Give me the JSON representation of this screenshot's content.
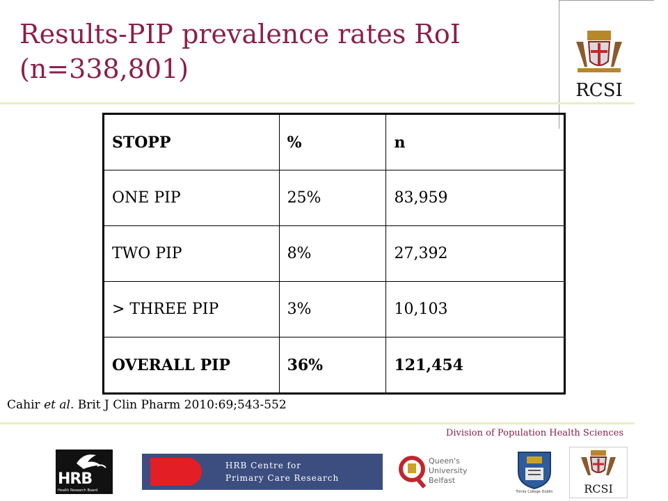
{
  "title": {
    "line1": "Results-PIP prevalence rates RoI",
    "line2": "(n=338,801)"
  },
  "table": {
    "header": [
      "STOPP",
      "%",
      "n"
    ],
    "rows": [
      [
        "ONE PIP",
        "25%",
        "83,959"
      ],
      [
        "TWO PIP",
        "8%",
        "27,392"
      ],
      [
        "> THREE PIP",
        "3%",
        "10,103"
      ]
    ],
    "total": [
      "OVERALL PIP",
      "36%",
      "121,454"
    ]
  },
  "citation": {
    "author": "Cahir",
    "etal": "et al",
    "rest": ". Brit J Clin Pharm 2010:69;543-552"
  },
  "footer": {
    "division": "Division of Population Health Sciences"
  },
  "logos": {
    "rcsi": "RCSI",
    "hrb": "HRB",
    "hrb_sub": "Health Research Board",
    "hrbc_line1": "HRB Centre for",
    "hrbc_line2": "Primary Care Research",
    "qub_line1": "Queen's University",
    "qub_line2": "Belfast",
    "tcd": "Trinity College Dublin"
  },
  "colors": {
    "title": "#8a1f4b",
    "rule": "#e8eec4",
    "hrbc_bg": "#3c4e80",
    "hrbc_red": "#e31e24"
  }
}
